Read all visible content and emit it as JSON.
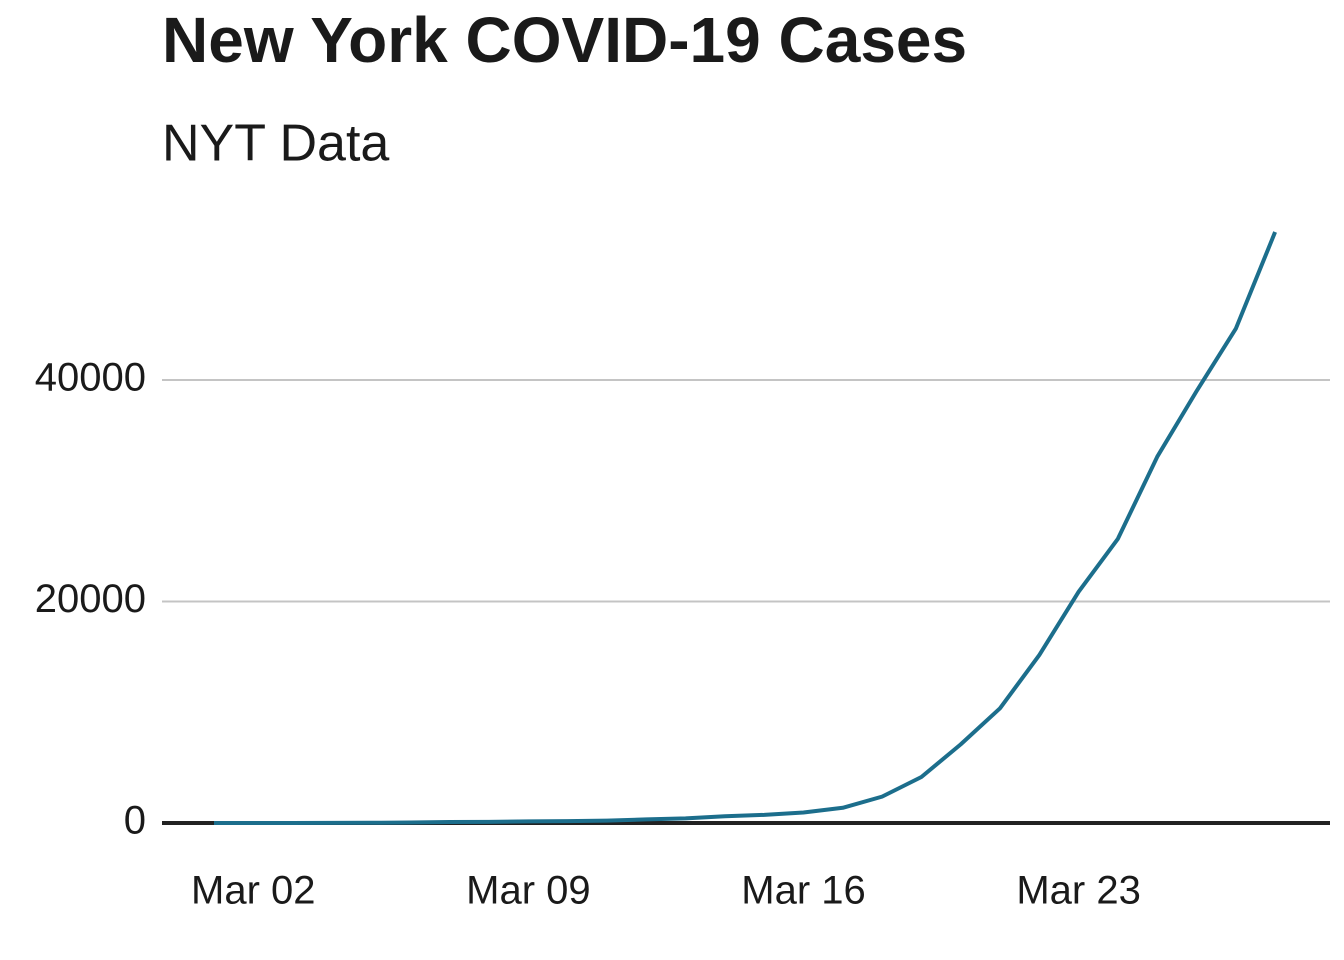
{
  "chart_data": {
    "type": "line",
    "title": "New York COVID-19 Cases",
    "subtitle": "NYT Data",
    "x": [
      "Mar 01",
      "Mar 02",
      "Mar 03",
      "Mar 04",
      "Mar 05",
      "Mar 06",
      "Mar 07",
      "Mar 08",
      "Mar 09",
      "Mar 10",
      "Mar 11",
      "Mar 12",
      "Mar 13",
      "Mar 14",
      "Mar 15",
      "Mar 16",
      "Mar 17",
      "Mar 18",
      "Mar 19",
      "Mar 20",
      "Mar 21",
      "Mar 22",
      "Mar 23",
      "Mar 24",
      "Mar 25",
      "Mar 26",
      "Mar 27",
      "Mar 28"
    ],
    "series": [
      {
        "color": "#1c6e8c",
        "values": [
          1,
          1,
          2,
          11,
          22,
          44,
          89,
          106,
          142,
          173,
          217,
          326,
          421,
          610,
          732,
          950,
          1374,
          2382,
          4152,
          7102,
          10356,
          15168,
          20875,
          25665,
          33066,
          38987,
          44635,
          53363
        ]
      }
    ],
    "xticks": [
      "Mar 02",
      "Mar 09",
      "Mar 16",
      "Mar 23"
    ],
    "ylim": [
      0,
      54000
    ],
    "yticks": [
      0,
      20000,
      40000
    ],
    "grid": true
  }
}
